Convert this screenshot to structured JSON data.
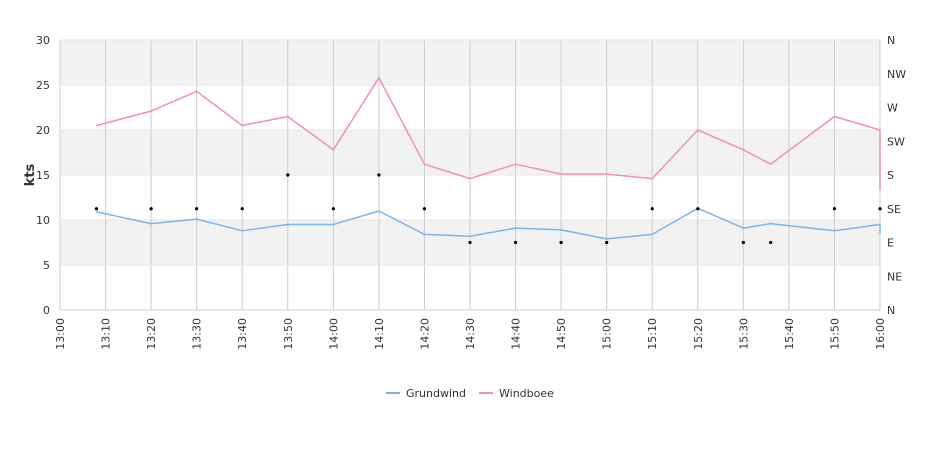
{
  "chart_data": {
    "type": "line",
    "title": "",
    "xlabel": "",
    "ylabel": "kts",
    "ylim": [
      0,
      30
    ],
    "y_ticks": [
      "0",
      "5",
      "10",
      "15",
      "20",
      "25",
      "30"
    ],
    "x_ticks": [
      "13:00",
      "13:10",
      "13:20",
      "13:30",
      "13:40",
      "13:50",
      "14:00",
      "14:10",
      "14:20",
      "14:30",
      "14:40",
      "14:50",
      "15:00",
      "15:10",
      "15:20",
      "15:30",
      "15:40",
      "15:50",
      "16:00"
    ],
    "y2_ticks": [
      "N",
      "NE",
      "E",
      "SE",
      "S",
      "SW",
      "W",
      "NW",
      "N"
    ],
    "grid": true,
    "legend": "bottom-center",
    "colors": {
      "Grundwind": "#7cb5ec",
      "Windboee": "#f08fb8",
      "direction": "#000000",
      "band": "#f2f2f2",
      "grid": "#cccccc"
    },
    "series": [
      {
        "name": "Grundwind",
        "x": [
          "13:08",
          "13:20",
          "13:30",
          "13:40",
          "13:50",
          "14:00",
          "14:10",
          "14:20",
          "14:30",
          "14:40",
          "14:50",
          "15:00",
          "15:10",
          "15:20",
          "15:30",
          "15:36",
          "15:50",
          "16:00",
          "16:00"
        ],
        "values": [
          10.9,
          9.6,
          10.1,
          8.8,
          9.5,
          9.5,
          11.0,
          8.4,
          8.2,
          9.1,
          8.9,
          7.9,
          8.4,
          11.3,
          9.1,
          9.6,
          8.8,
          9.5,
          8.6
        ]
      },
      {
        "name": "Windboee",
        "x": [
          "13:08",
          "13:20",
          "13:30",
          "13:40",
          "13:50",
          "14:00",
          "14:10",
          "14:20",
          "14:30",
          "14:40",
          "14:50",
          "15:00",
          "15:10",
          "15:20",
          "15:30",
          "15:36",
          "15:50",
          "16:00",
          "16:00"
        ],
        "values": [
          20.5,
          22.1,
          24.3,
          20.5,
          21.5,
          17.8,
          25.8,
          16.2,
          14.6,
          16.2,
          15.1,
          15.1,
          14.6,
          20.0,
          17.8,
          16.2,
          21.5,
          20.0,
          13.5
        ]
      }
    ],
    "direction": {
      "x": [
        "13:08",
        "13:20",
        "13:30",
        "13:40",
        "13:50",
        "14:00",
        "14:10",
        "14:20",
        "14:30",
        "14:40",
        "14:50",
        "15:00",
        "15:10",
        "15:20",
        "15:30",
        "15:36",
        "15:50",
        "16:00"
      ],
      "values": [
        "SE",
        "SE",
        "SE",
        "SE",
        "S",
        "SE",
        "S",
        "SE",
        "E",
        "E",
        "E",
        "E",
        "SE",
        "SE",
        "E",
        "E",
        "SE",
        "SE"
      ]
    }
  },
  "legend": {
    "items": [
      {
        "label": "Grundwind",
        "color": "#7cb5ec"
      },
      {
        "label": "Windboee",
        "color": "#f08fb8"
      }
    ]
  }
}
